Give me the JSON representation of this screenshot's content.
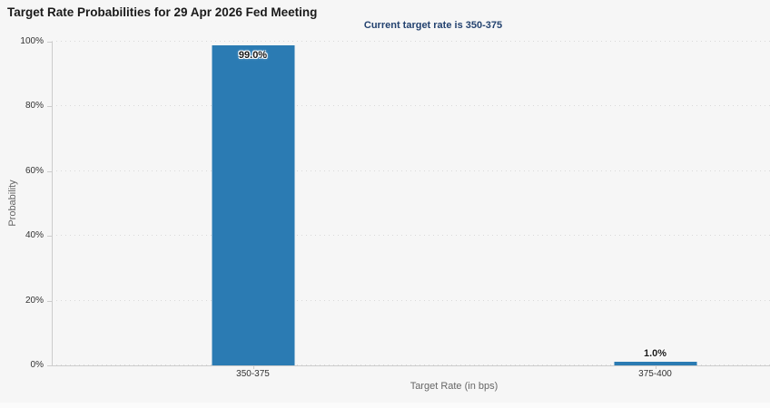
{
  "chart_data": {
    "type": "bar",
    "title": "Target Rate Probabilities for 29 Apr 2026 Fed Meeting",
    "subtitle": "Current target rate is 350-375",
    "xlabel": "Target Rate (in bps)",
    "ylabel": "Probability",
    "categories": [
      "350-375",
      "375-400"
    ],
    "values": [
      99.0,
      1.0
    ],
    "bar_labels": [
      "99.0%",
      "1.0%"
    ],
    "bar_label_positions": [
      "inside",
      "above"
    ],
    "ylim": [
      0,
      100
    ],
    "yticks": {
      "values": [
        0,
        20,
        40,
        60,
        80,
        100
      ],
      "labels": [
        "0%",
        "20%",
        "40%",
        "60%",
        "80%",
        "100%"
      ]
    },
    "grid": "dotted-horizontal",
    "legend": "none",
    "colors": {
      "bar": "#2b7bb3",
      "background": "#f6f6f6",
      "title": "#1a1a1a",
      "subtitle": "#23426f",
      "axis_line": "#cccccc",
      "grid_dot": "#d9d9d9",
      "tick_label": "#333333",
      "axis_title": "#666666",
      "data_label": "#1a1a1a"
    }
  }
}
